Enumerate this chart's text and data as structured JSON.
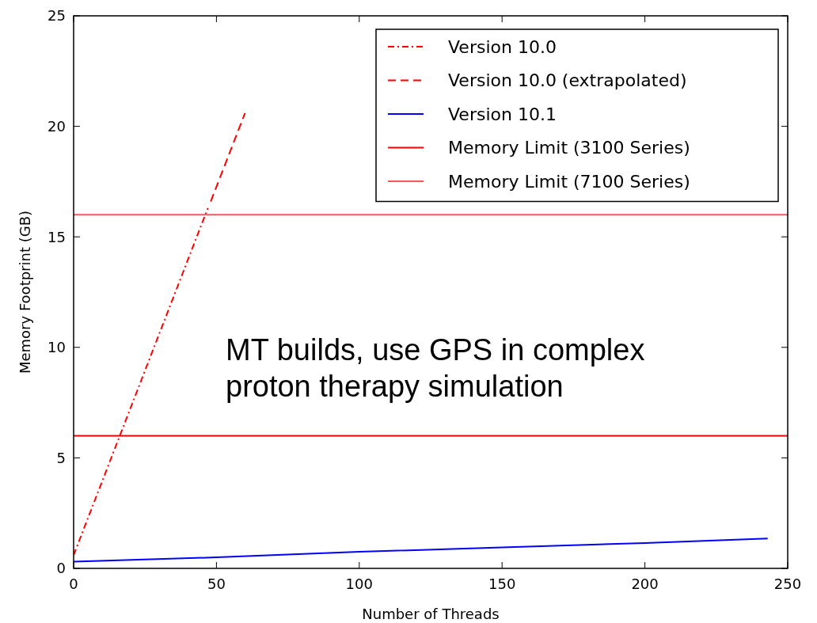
{
  "chart_data": {
    "type": "line",
    "xlabel": "Number of Threads",
    "ylabel": "Memory Footprint (GB)",
    "xlim": [
      0,
      250
    ],
    "xticks": [
      0,
      50,
      100,
      150,
      200,
      250
    ],
    "ylim": [
      0,
      25
    ],
    "yticks": [
      0,
      5,
      10,
      15,
      20,
      25
    ],
    "grid": false,
    "legend": "top right",
    "marker": "none",
    "series": [
      {
        "name": "Version 10.0",
        "color": "#ff0000",
        "line_style": "dotted",
        "x": [
          0,
          47
        ],
        "values": [
          0.6,
          16.3
        ]
      },
      {
        "name": "Version 10.0 (extrapolated)",
        "color": "#ff0000",
        "line_style": "dashed",
        "x": [
          48,
          60
        ],
        "values": [
          16.6,
          20.6
        ]
      },
      {
        "name": "Version 10.1",
        "color": "#0000ff",
        "line_style": "solid",
        "x": [
          0,
          50,
          100,
          150,
          200,
          243
        ],
        "values": [
          0.3,
          0.5,
          0.75,
          0.95,
          1.15,
          1.35
        ]
      },
      {
        "name": "Memory Limit (3100 Series)",
        "color": "#ff0000",
        "line_style": "solid",
        "x": [
          0,
          250
        ],
        "values": [
          6,
          6
        ]
      },
      {
        "name": "Memory Limit (7100 Series)",
        "color": "#ff5555",
        "line_style": "solid",
        "x": [
          0,
          250
        ],
        "values": [
          16,
          16
        ]
      }
    ],
    "annotations": [
      "MT builds, use GPS in complex proton therapy simulation"
    ]
  }
}
